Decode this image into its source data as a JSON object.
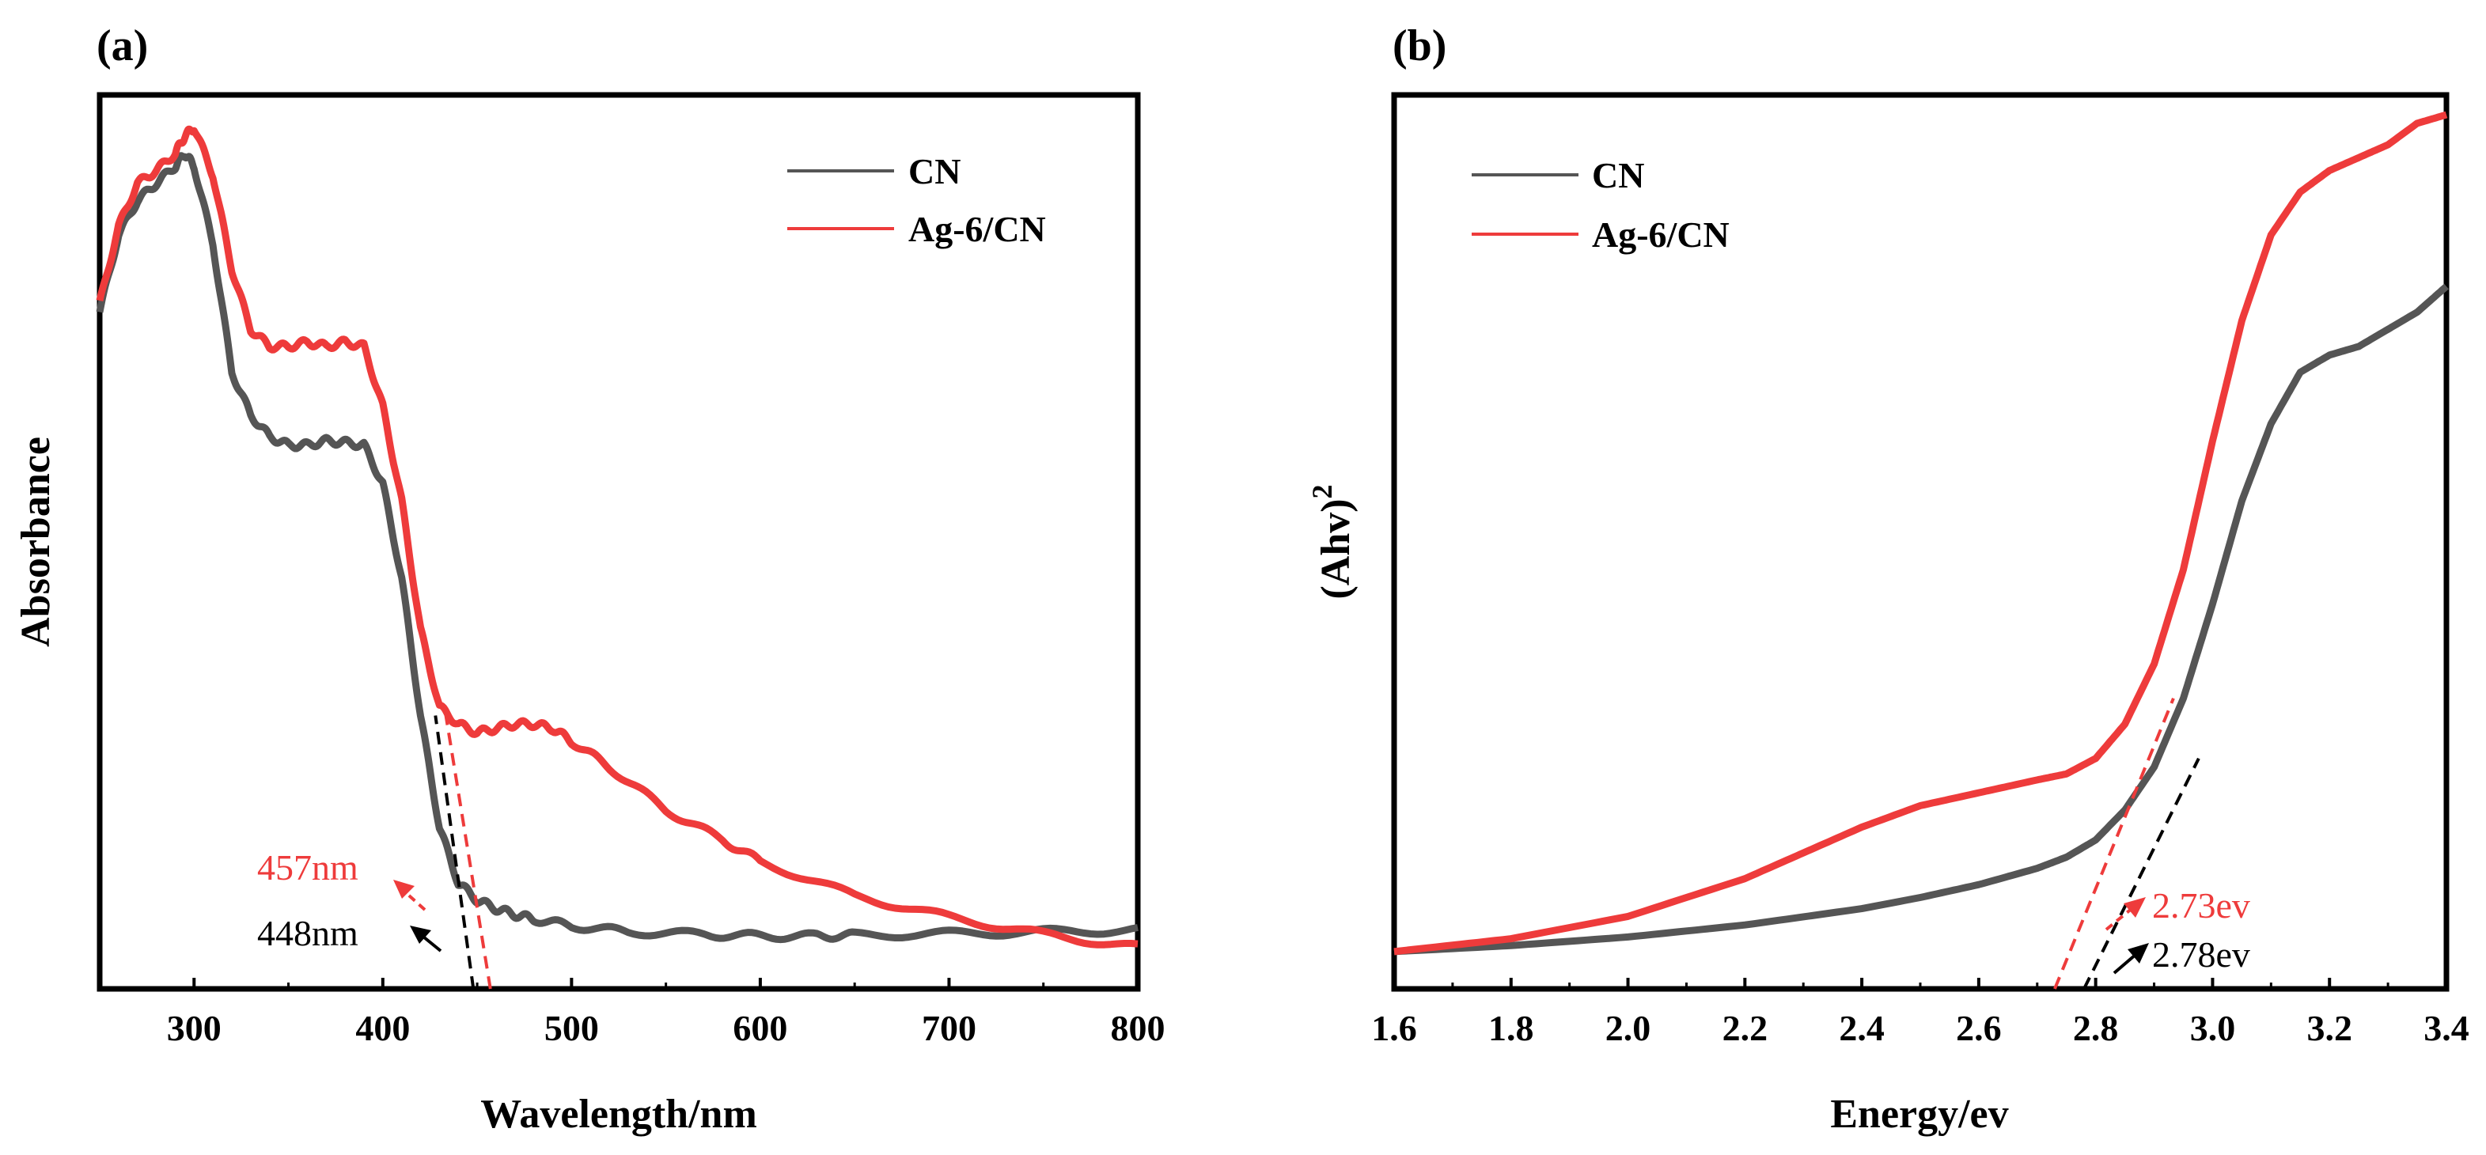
{
  "chart_data": [
    {
      "type": "line",
      "panel_label": "(a)",
      "xlabel": "Wavelength/nm",
      "ylabel": "Absorbance",
      "xlim": [
        250,
        800
      ],
      "ylim": [
        0,
        1.0
      ],
      "xticks": [
        300,
        400,
        500,
        600,
        700,
        800
      ],
      "yticks_visible": false,
      "legend_position": "top-right",
      "series": [
        {
          "name": "CN",
          "color": "#555555",
          "x": [
            250,
            260,
            270,
            280,
            290,
            295,
            300,
            310,
            320,
            330,
            340,
            350,
            360,
            370,
            380,
            390,
            400,
            410,
            420,
            430,
            440,
            450,
            460,
            470,
            480,
            500,
            530,
            570,
            600,
            630,
            650,
            700,
            750,
            800
          ],
          "y": [
            0.77,
            0.86,
            0.9,
            0.92,
            0.94,
            0.955,
            0.94,
            0.85,
            0.7,
            0.65,
            0.625,
            0.615,
            0.615,
            0.62,
            0.618,
            0.615,
            0.57,
            0.46,
            0.3,
            0.17,
            0.105,
            0.085,
            0.075,
            0.068,
            0.063,
            0.055,
            0.048,
            0.045,
            0.043,
            0.043,
            0.044,
            0.046,
            0.048,
            0.05
          ]
        },
        {
          "name": "Ag-6/CN",
          "color": "#ee3b3b",
          "x": [
            250,
            260,
            270,
            280,
            290,
            295,
            300,
            310,
            320,
            330,
            340,
            350,
            360,
            370,
            380,
            390,
            400,
            410,
            420,
            430,
            440,
            450,
            460,
            470,
            480,
            490,
            500,
            520,
            550,
            580,
            600,
            650,
            700,
            750,
            800
          ],
          "y": [
            0.78,
            0.87,
            0.92,
            0.935,
            0.955,
            0.975,
            0.985,
            0.93,
            0.82,
            0.75,
            0.73,
            0.73,
            0.735,
            0.73,
            0.735,
            0.73,
            0.66,
            0.55,
            0.4,
            0.31,
            0.29,
            0.28,
            0.285,
            0.29,
            0.29,
            0.285,
            0.27,
            0.24,
            0.19,
            0.155,
            0.13,
            0.09,
            0.065,
            0.045,
            0.03
          ]
        }
      ],
      "annotations": [
        {
          "text": "457nm",
          "color": "#ee3b3b",
          "x": 457
        },
        {
          "text": "448nm",
          "color": "#000000",
          "x": 448
        }
      ]
    },
    {
      "type": "line",
      "panel_label": "(b)",
      "xlabel": "Energy/ev",
      "ylabel_base": "(Ahv)",
      "ylabel_sup": "2",
      "xlim": [
        1.6,
        3.4
      ],
      "ylim": [
        0,
        1.0
      ],
      "xticks": [
        "1.6",
        "1.8",
        "2.0",
        "2.2",
        "2.4",
        "2.6",
        "2.8",
        "3.0",
        "3.2",
        "3.4"
      ],
      "yticks_visible": false,
      "legend_position": "top-left",
      "series": [
        {
          "name": "CN",
          "color": "#555555",
          "x": [
            1.6,
            1.8,
            2.0,
            2.2,
            2.4,
            2.5,
            2.6,
            2.7,
            2.75,
            2.8,
            2.85,
            2.9,
            2.95,
            3.0,
            3.05,
            3.1,
            3.15,
            3.2,
            3.25,
            3.3,
            3.35,
            3.4
          ],
          "y": [
            0.025,
            0.032,
            0.042,
            0.056,
            0.075,
            0.088,
            0.103,
            0.122,
            0.135,
            0.155,
            0.19,
            0.24,
            0.32,
            0.43,
            0.55,
            0.64,
            0.7,
            0.72,
            0.73,
            0.75,
            0.77,
            0.8
          ]
        },
        {
          "name": "Ag-6/CN",
          "color": "#ee3b3b",
          "x": [
            1.6,
            1.8,
            2.0,
            2.2,
            2.3,
            2.4,
            2.5,
            2.6,
            2.7,
            2.75,
            2.8,
            2.85,
            2.9,
            2.95,
            3.0,
            3.05,
            3.1,
            3.15,
            3.2,
            3.25,
            3.3,
            3.35,
            3.4
          ],
          "y": [
            0.025,
            0.04,
            0.066,
            0.11,
            0.14,
            0.17,
            0.195,
            0.21,
            0.225,
            0.232,
            0.25,
            0.29,
            0.36,
            0.47,
            0.62,
            0.76,
            0.86,
            0.91,
            0.935,
            0.95,
            0.965,
            0.99,
            1.0
          ]
        }
      ],
      "annotations": [
        {
          "text": "2.73ev",
          "color": "#ee3b3b",
          "x": 2.73
        },
        {
          "text": "2.78ev",
          "color": "#000000",
          "x": 2.78
        }
      ]
    }
  ]
}
